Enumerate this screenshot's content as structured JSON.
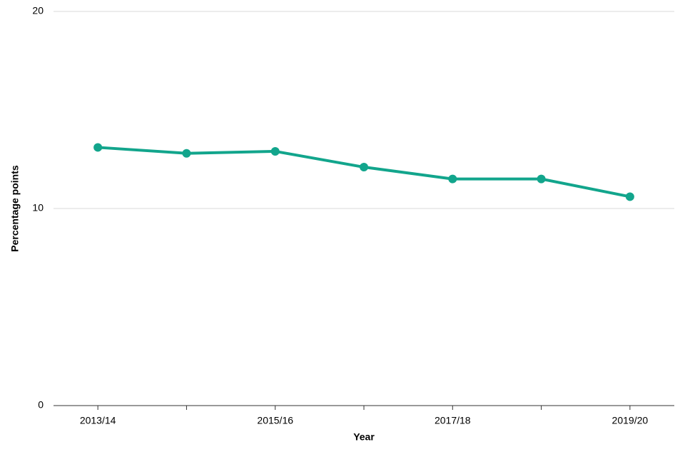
{
  "chart_data": {
    "type": "line",
    "categories": [
      "2013/14",
      null,
      "2015/16",
      null,
      "2017/18",
      null,
      "2019/20"
    ],
    "values": [
      13.1,
      12.8,
      12.9,
      12.1,
      11.5,
      11.5,
      10.6
    ],
    "color": "#12a58c",
    "ylim": [
      0,
      20
    ],
    "yticks": [
      0,
      10,
      20
    ],
    "grid": true,
    "x_label": "Year",
    "y_label": "Percentage  points"
  }
}
